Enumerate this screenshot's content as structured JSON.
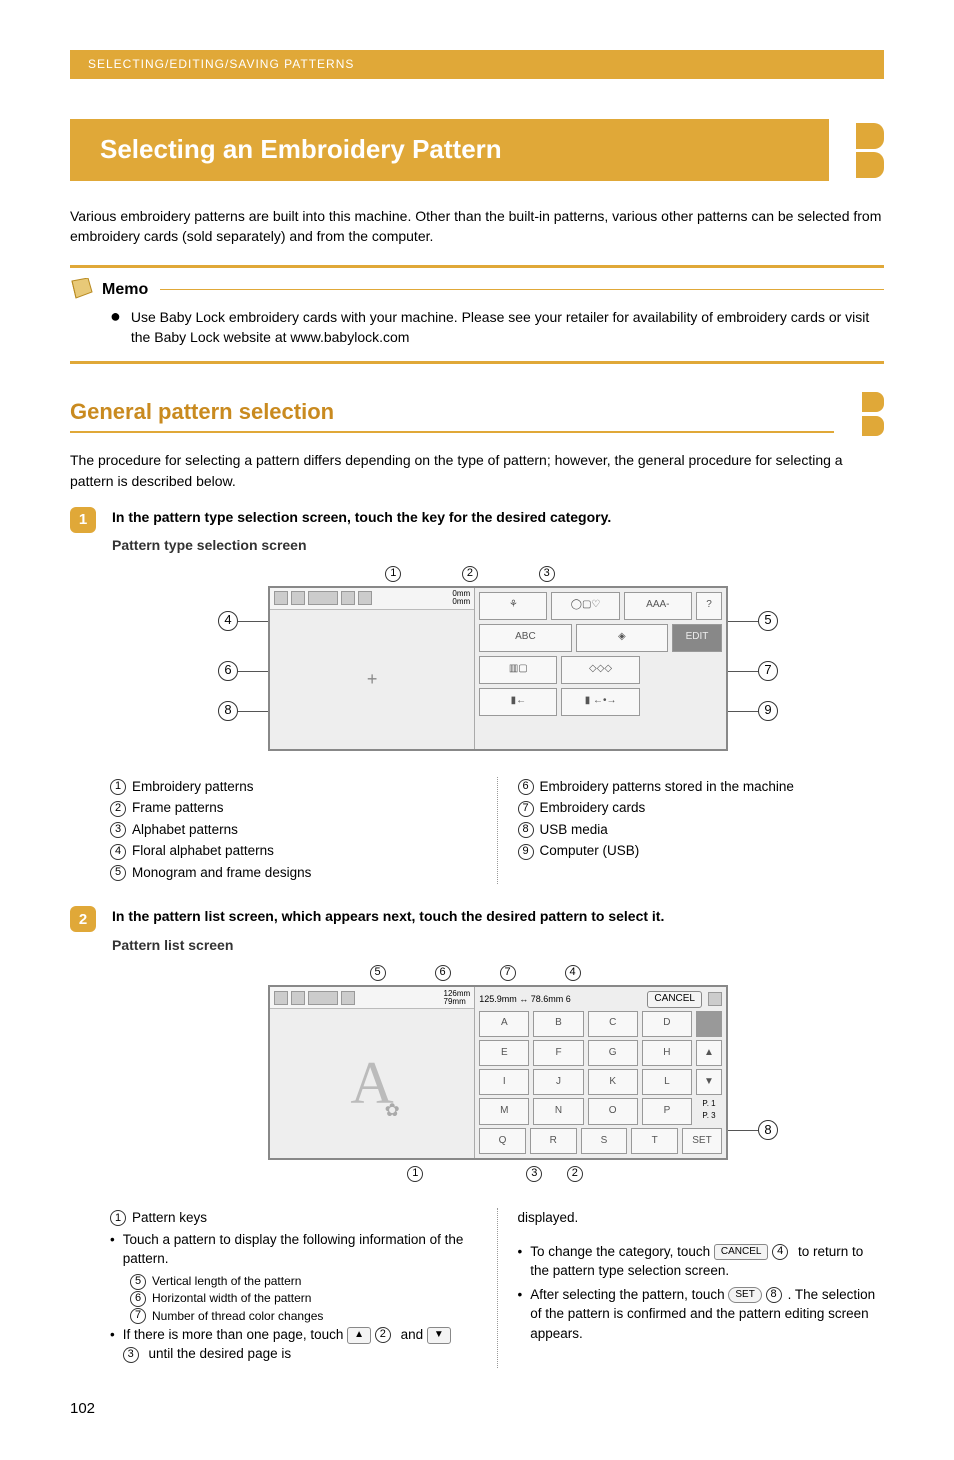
{
  "breadcrumb": "SELECTING/EDITING/SAVING PATTERNS",
  "page_title": "Selecting an Embroidery Pattern",
  "intro": "Various embroidery patterns are built into this machine. Other than the built-in patterns, various other patterns can be selected from embroidery cards (sold separately) and from the computer.",
  "memo": {
    "title": "Memo",
    "body": "Use Baby Lock embroidery cards with your machine. Please see your retailer for availability of embroidery cards or visit the Baby Lock website at www.babylock.com"
  },
  "subheader": "General pattern selection",
  "sub_intro": "The procedure for selecting a pattern differs depending on the type of pattern; however, the general procedure for selecting a pattern is described below.",
  "step1": {
    "num": "1",
    "title": "In the pattern type selection screen, touch the key for the desired category.",
    "caption": "Pattern type selection screen",
    "fig": {
      "mm1": "0mm",
      "mm2": "0mm",
      "row1": [
        "⚘",
        "◯▢♡",
        "AAA-"
      ],
      "row2": [
        "ABC",
        "◈",
        "EDIT"
      ],
      "row3": [
        "▥▢",
        "◇◇◇",
        ""
      ],
      "row4": [
        "▮←",
        "▮ ←•→",
        ""
      ]
    },
    "legend_left": [
      {
        "n": "1",
        "t": "Embroidery patterns"
      },
      {
        "n": "2",
        "t": "Frame patterns"
      },
      {
        "n": "3",
        "t": "Alphabet patterns"
      },
      {
        "n": "4",
        "t": "Floral alphabet patterns"
      },
      {
        "n": "5",
        "t": "Monogram and frame designs"
      }
    ],
    "legend_right": [
      {
        "n": "6",
        "t": "Embroidery patterns stored in the machine"
      },
      {
        "n": "7",
        "t": "Embroidery cards"
      },
      {
        "n": "8",
        "t": "USB media"
      },
      {
        "n": "9",
        "t": "Computer (USB)"
      }
    ]
  },
  "step2": {
    "num": "2",
    "title": "In the pattern list screen, which appears next, touch the desired pattern to select it.",
    "caption": "Pattern list screen",
    "fig": {
      "size_w": "126mm",
      "size_h": "79mm",
      "header": "125.9mm ↔ 78.6mm  6",
      "cancel": "CANCEL",
      "set": "SET",
      "page": "P. 1",
      "pages": "P. 3"
    },
    "col_left": {
      "i1_n": "1",
      "i1_t": "Pattern keys",
      "b1": "Touch a pattern to display the following information of the pattern.",
      "s1_n": "5",
      "s1_t": "Vertical length of the pattern",
      "s2_n": "6",
      "s2_t": "Horizontal width of the pattern",
      "s3_n": "7",
      "s3_t": "Number of thread color changes",
      "b2a": "If there is more than one page, touch",
      "b2_n1": "2",
      "b2_mid": "and",
      "b2_n2": "3",
      "b2b": "until the desired page is"
    },
    "col_right": {
      "cont": "displayed.",
      "b1a": "To change the category, touch",
      "b1_btn": "CANCEL",
      "b1_n": "4",
      "b1b": "to return to the pattern type selection screen.",
      "b2a": "After selecting the pattern, touch",
      "b2_btn": "SET",
      "b2_n": "8",
      "b2_dot": ".",
      "b2b": "The selection of the pattern is confirmed and the pattern editing screen appears."
    }
  },
  "page_number": "102",
  "colors": {
    "accent": "#e0a838",
    "accent_dark": "#c98a1f"
  }
}
